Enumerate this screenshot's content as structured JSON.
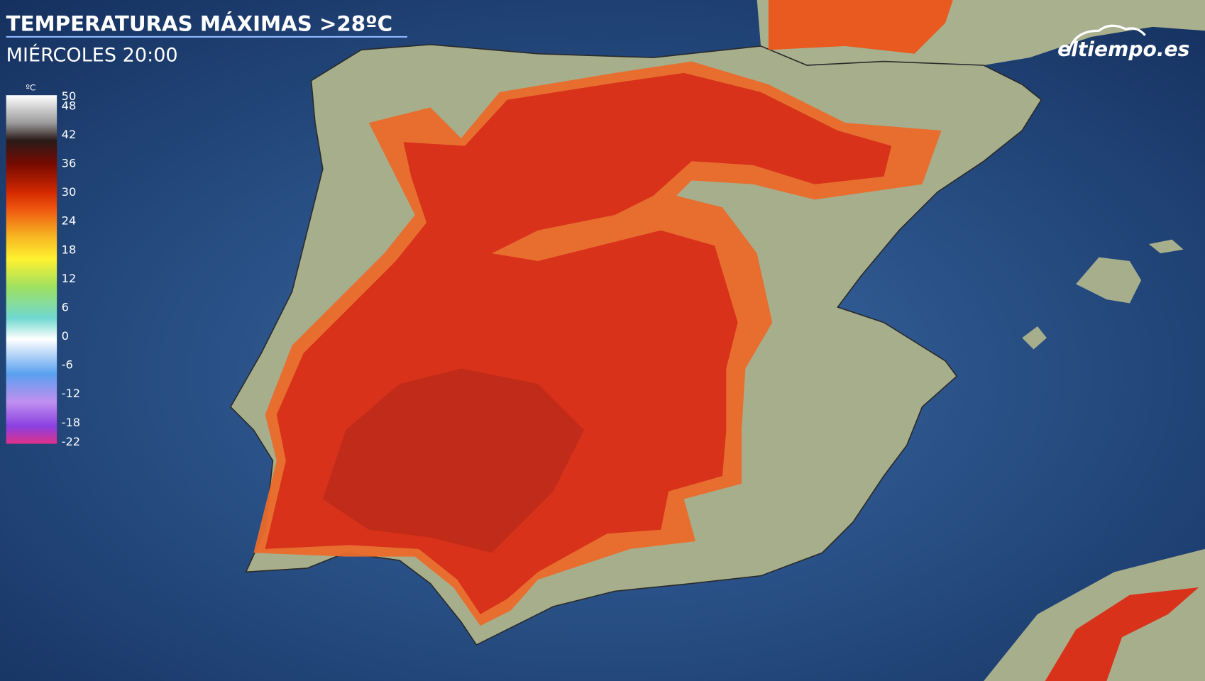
{
  "header": {
    "title": "TEMPERATURAS MÁXIMAS >28ºC",
    "subtitle": "MIÉRCOLES 20:00"
  },
  "legend": {
    "unit": "ºC",
    "ticks": [
      50,
      48,
      42,
      36,
      30,
      24,
      18,
      12,
      6,
      0,
      -6,
      -12,
      -18,
      -22
    ]
  },
  "logo": "eltiempo.es"
}
